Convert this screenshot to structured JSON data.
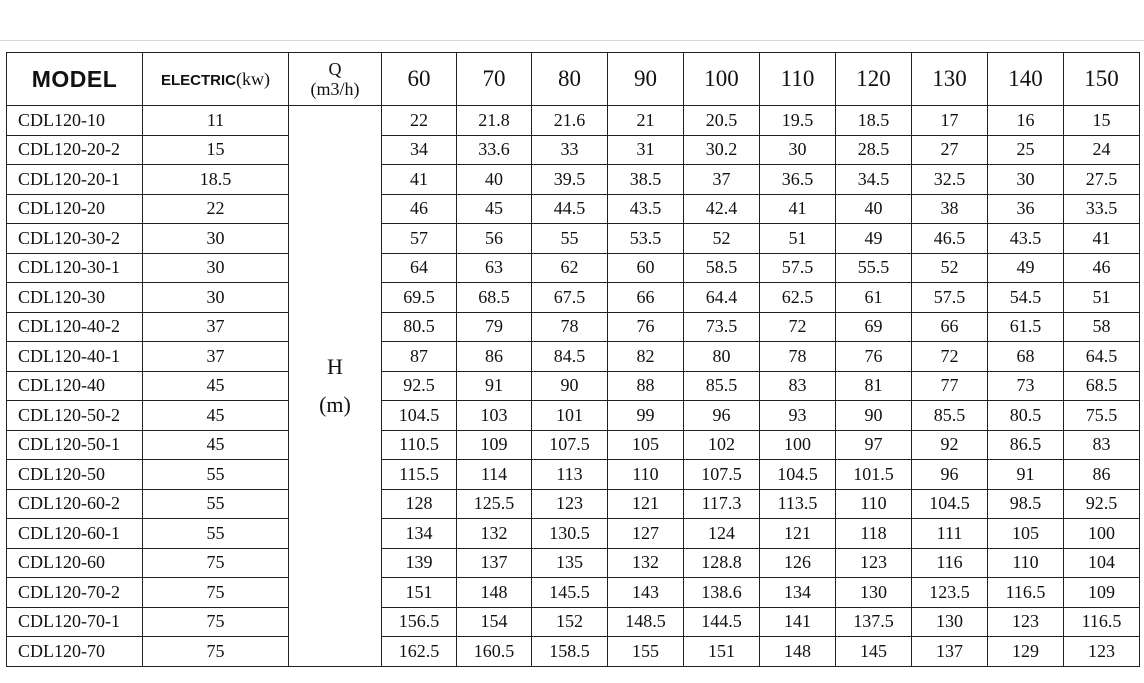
{
  "table": {
    "headers": {
      "model": "MODEL",
      "electric": "ELECTRIC",
      "electric_unit": "(kw)",
      "q_symbol": "Q",
      "q_unit": "(m3/h)",
      "flows": [
        "60",
        "70",
        "80",
        "90",
        "100",
        "110",
        "120",
        "130",
        "140",
        "150"
      ]
    },
    "head_label": {
      "symbol": "H",
      "unit": "(m)"
    },
    "rows": [
      {
        "model": "CDL120-10",
        "power": "11",
        "heads": [
          "22",
          "21.8",
          "21.6",
          "21",
          "20.5",
          "19.5",
          "18.5",
          "17",
          "16",
          "15"
        ]
      },
      {
        "model": "CDL120-20-2",
        "power": "15",
        "heads": [
          "34",
          "33.6",
          "33",
          "31",
          "30.2",
          "30",
          "28.5",
          "27",
          "25",
          "24"
        ]
      },
      {
        "model": "CDL120-20-1",
        "power": "18.5",
        "heads": [
          "41",
          "40",
          "39.5",
          "38.5",
          "37",
          "36.5",
          "34.5",
          "32.5",
          "30",
          "27.5"
        ]
      },
      {
        "model": "CDL120-20",
        "power": "22",
        "heads": [
          "46",
          "45",
          "44.5",
          "43.5",
          "42.4",
          "41",
          "40",
          "38",
          "36",
          "33.5"
        ]
      },
      {
        "model": "CDL120-30-2",
        "power": "30",
        "heads": [
          "57",
          "56",
          "55",
          "53.5",
          "52",
          "51",
          "49",
          "46.5",
          "43.5",
          "41"
        ]
      },
      {
        "model": "CDL120-30-1",
        "power": "30",
        "heads": [
          "64",
          "63",
          "62",
          "60",
          "58.5",
          "57.5",
          "55.5",
          "52",
          "49",
          "46"
        ]
      },
      {
        "model": "CDL120-30",
        "power": "30",
        "heads": [
          "69.5",
          "68.5",
          "67.5",
          "66",
          "64.4",
          "62.5",
          "61",
          "57.5",
          "54.5",
          "51"
        ]
      },
      {
        "model": "CDL120-40-2",
        "power": "37",
        "heads": [
          "80.5",
          "79",
          "78",
          "76",
          "73.5",
          "72",
          "69",
          "66",
          "61.5",
          "58"
        ]
      },
      {
        "model": "CDL120-40-1",
        "power": "37",
        "heads": [
          "87",
          "86",
          "84.5",
          "82",
          "80",
          "78",
          "76",
          "72",
          "68",
          "64.5"
        ]
      },
      {
        "model": "CDL120-40",
        "power": "45",
        "heads": [
          "92.5",
          "91",
          "90",
          "88",
          "85.5",
          "83",
          "81",
          "77",
          "73",
          "68.5"
        ]
      },
      {
        "model": "CDL120-50-2",
        "power": "45",
        "heads": [
          "104.5",
          "103",
          "101",
          "99",
          "96",
          "93",
          "90",
          "85.5",
          "80.5",
          "75.5"
        ]
      },
      {
        "model": "CDL120-50-1",
        "power": "45",
        "heads": [
          "110.5",
          "109",
          "107.5",
          "105",
          "102",
          "100",
          "97",
          "92",
          "86.5",
          "83"
        ]
      },
      {
        "model": "CDL120-50",
        "power": "55",
        "heads": [
          "115.5",
          "114",
          "113",
          "110",
          "107.5",
          "104.5",
          "101.5",
          "96",
          "91",
          "86"
        ]
      },
      {
        "model": "CDL120-60-2",
        "power": "55",
        "heads": [
          "128",
          "125.5",
          "123",
          "121",
          "117.3",
          "113.5",
          "110",
          "104.5",
          "98.5",
          "92.5"
        ]
      },
      {
        "model": "CDL120-60-1",
        "power": "55",
        "heads": [
          "134",
          "132",
          "130.5",
          "127",
          "124",
          "121",
          "118",
          "111",
          "105",
          "100"
        ]
      },
      {
        "model": "CDL120-60",
        "power": "75",
        "heads": [
          "139",
          "137",
          "135",
          "132",
          "128.8",
          "126",
          "123",
          "116",
          "110",
          "104"
        ]
      },
      {
        "model": "CDL120-70-2",
        "power": "75",
        "heads": [
          "151",
          "148",
          "145.5",
          "143",
          "138.6",
          "134",
          "130",
          "123.5",
          "116.5",
          "109"
        ]
      },
      {
        "model": "CDL120-70-1",
        "power": "75",
        "heads": [
          "156.5",
          "154",
          "152",
          "148.5",
          "144.5",
          "141",
          "137.5",
          "130",
          "123",
          "116.5"
        ]
      },
      {
        "model": "CDL120-70",
        "power": "75",
        "heads": [
          "162.5",
          "160.5",
          "158.5",
          "155",
          "151",
          "148",
          "145",
          "137",
          "129",
          "123"
        ]
      }
    ]
  }
}
